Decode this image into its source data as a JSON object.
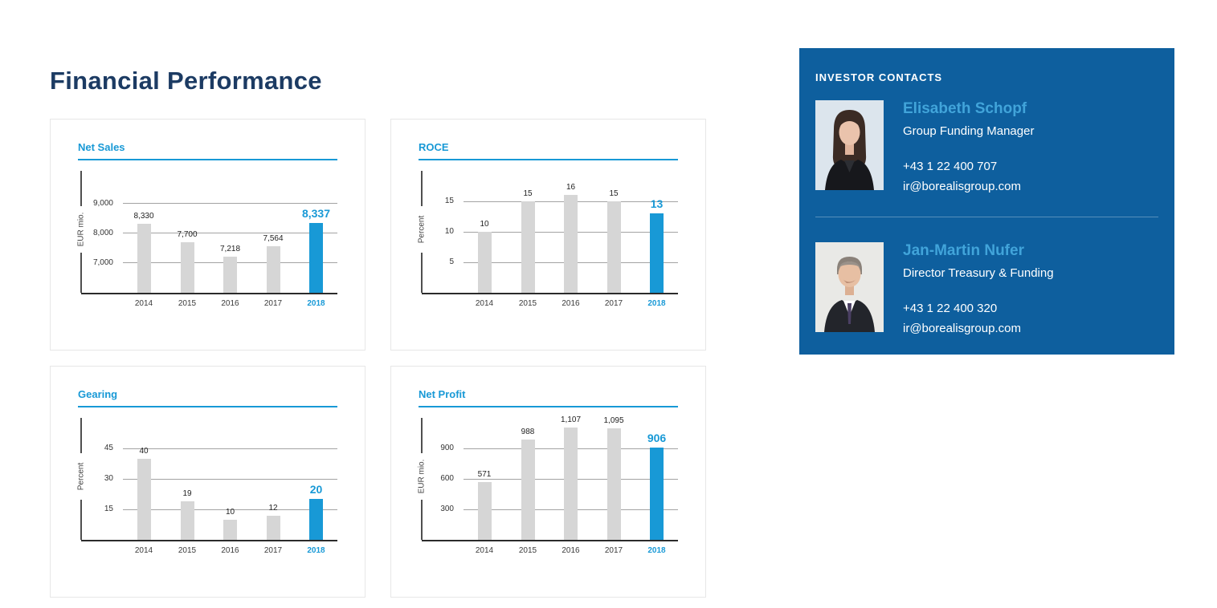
{
  "page_title": "Financial Performance",
  "colors": {
    "accent": "#1899d6",
    "navy": "#1c3b63",
    "panel": "#0e5f9e",
    "nameblue": "#41a4da",
    "bar": "#d6d6d6"
  },
  "chart_data": [
    {
      "type": "bar",
      "title": "Net Sales",
      "ylabel": "EUR mio.",
      "categories": [
        "2014",
        "2015",
        "2016",
        "2017",
        "2018"
      ],
      "values": [
        8330,
        7700,
        7218,
        7564,
        8337
      ],
      "labels": [
        "8,330",
        "7,700",
        "7,218",
        "7,564",
        "8,337"
      ],
      "highlight_index": 4,
      "ylim": [
        6000,
        10100
      ],
      "gridlines": [
        7000,
        8000,
        9000
      ],
      "tick_labels": [
        "7,000",
        "8,000",
        "9,000"
      ],
      "grid": true,
      "legend": false
    },
    {
      "type": "bar",
      "title": "ROCE",
      "ylabel": "Percent",
      "categories": [
        "2014",
        "2015",
        "2016",
        "2017",
        "2018"
      ],
      "values": [
        10,
        15,
        16,
        15,
        13
      ],
      "labels": [
        "10",
        "15",
        "16",
        "15",
        "13"
      ],
      "highlight_index": 4,
      "ylim": [
        0,
        20
      ],
      "gridlines": [
        5,
        10,
        15
      ],
      "tick_labels": [
        "5",
        "10",
        "15"
      ],
      "grid": true,
      "legend": false
    },
    {
      "type": "bar",
      "title": "Gearing",
      "ylabel": "Percent",
      "categories": [
        "2014",
        "2015",
        "2016",
        "2017",
        "2018"
      ],
      "values": [
        40,
        19,
        10,
        12,
        20
      ],
      "labels": [
        "40",
        "19",
        "10",
        "12",
        "20"
      ],
      "highlight_index": 4,
      "ylim": [
        0,
        60
      ],
      "gridlines": [
        15,
        30,
        45
      ],
      "tick_labels": [
        "15",
        "30",
        "45"
      ],
      "grid": true,
      "legend": false
    },
    {
      "type": "bar",
      "title": "Net Profit",
      "ylabel": "EUR mio.",
      "categories": [
        "2014",
        "2015",
        "2016",
        "2017",
        "2018"
      ],
      "values": [
        571,
        988,
        1107,
        1095,
        906
      ],
      "labels": [
        "571",
        "988",
        "1,107",
        "1,095",
        "906"
      ],
      "highlight_index": 4,
      "ylim": [
        0,
        1200
      ],
      "gridlines": [
        300,
        600,
        900
      ],
      "tick_labels": [
        "300",
        "600",
        "900"
      ],
      "grid": true,
      "legend": false
    }
  ],
  "contacts_panel": {
    "header": "INVESTOR CONTACTS",
    "contacts": [
      {
        "name": "Elisabeth Schopf",
        "role": "Group Funding Manager",
        "phone": "+43 1 22 400 707",
        "email": "ir@borealisgroup.com",
        "photo": "woman-portrait"
      },
      {
        "name": "Jan-Martin Nufer",
        "role": "Director Treasury & Funding",
        "phone": "+43 1 22 400 320",
        "email": "ir@borealisgroup.com",
        "photo": "man-portrait"
      }
    ]
  }
}
